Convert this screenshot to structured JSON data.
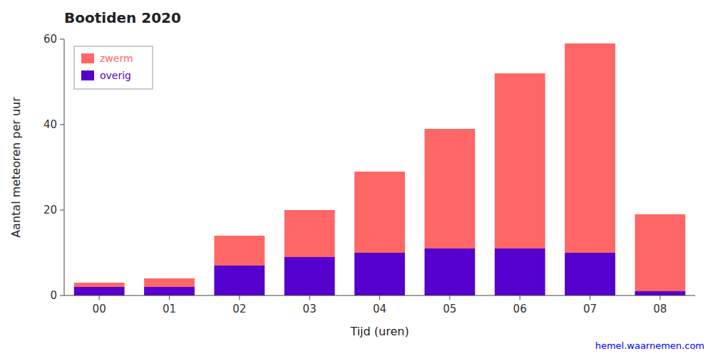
{
  "chart_data": {
    "type": "bar",
    "stacked": true,
    "title": "Bootiden 2020",
    "xlabel": "Tijd (uren)",
    "ylabel": "Aantal meteoren per uur",
    "categories": [
      "00",
      "01",
      "02",
      "03",
      "04",
      "05",
      "06",
      "07",
      "08"
    ],
    "series": [
      {
        "name": "overig",
        "color": "#5500CC",
        "values": [
          2,
          2,
          7,
          9,
          10,
          11,
          11,
          10,
          1
        ]
      },
      {
        "name": "zwerm",
        "color": "#FF6666",
        "values": [
          1,
          2,
          7,
          11,
          19,
          28,
          41,
          49,
          18
        ]
      }
    ],
    "ylim": [
      0,
      60
    ],
    "yticks": [
      0,
      20,
      40,
      60
    ],
    "grid": false,
    "legend": "upper left",
    "annotations": [
      {
        "text": "hemel.waarnemen.com",
        "color": "#0000FF"
      }
    ]
  }
}
